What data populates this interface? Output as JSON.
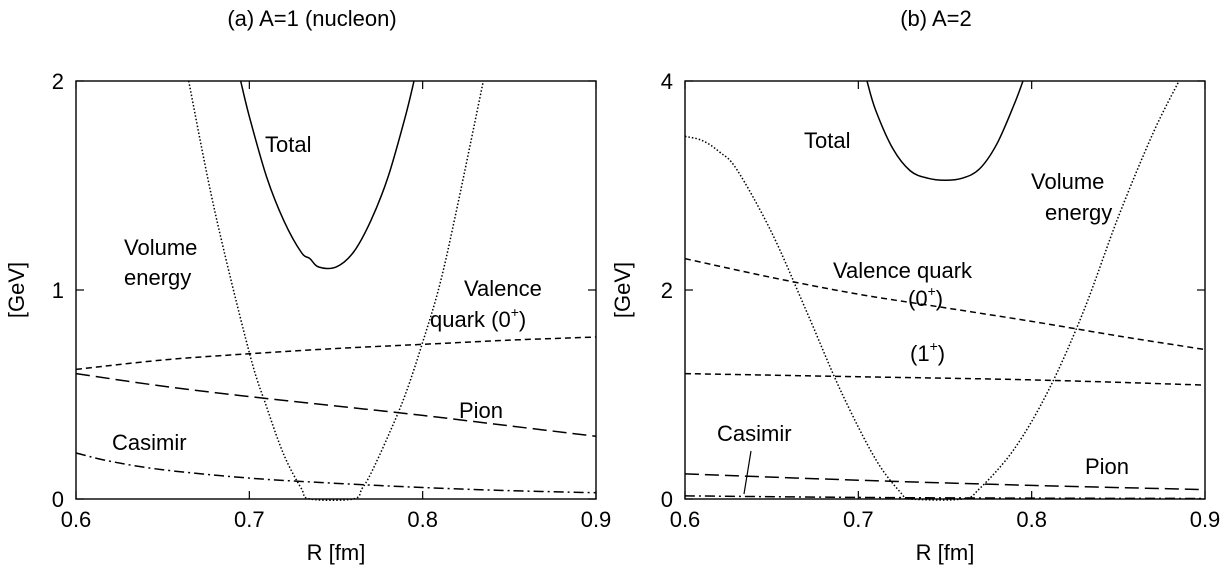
{
  "chart_data": [
    {
      "type": "line",
      "title": "(a) A=1 (nucleon)",
      "xlabel": "R [fm]",
      "ylabel": "[GeV]",
      "xlim": [
        0.6,
        0.9
      ],
      "ylim": [
        0,
        2
      ],
      "xticks": [
        "0.6",
        "0.7",
        "0.8",
        "0.9"
      ],
      "yticks": [
        "0",
        "1",
        "2"
      ],
      "grid": false,
      "series": [
        {
          "key": "total",
          "style": "solid",
          "x": [
            0.695,
            0.7,
            0.71,
            0.72,
            0.73,
            0.735,
            0.74,
            0.75,
            0.76,
            0.77,
            0.78,
            0.79,
            0.795
          ],
          "y": [
            2.0,
            1.83,
            1.54,
            1.33,
            1.18,
            1.15,
            1.11,
            1.11,
            1.18,
            1.33,
            1.54,
            1.83,
            2.0
          ]
        },
        {
          "key": "volume",
          "style": "dotted",
          "x": [
            0.665,
            0.68,
            0.7,
            0.71,
            0.72,
            0.73,
            0.735,
            0.76,
            0.765,
            0.77,
            0.78,
            0.79,
            0.8,
            0.81,
            0.82,
            0.835
          ],
          "y": [
            2.0,
            1.38,
            0.7,
            0.44,
            0.21,
            0.05,
            0.0,
            0.0,
            0.05,
            0.12,
            0.3,
            0.5,
            0.75,
            1.03,
            1.4,
            2.0
          ]
        },
        {
          "key": "valence",
          "style": "shortdash",
          "x": [
            0.6,
            0.65,
            0.7,
            0.75,
            0.8,
            0.85,
            0.9
          ],
          "y": [
            0.62,
            0.665,
            0.695,
            0.72,
            0.74,
            0.76,
            0.775
          ]
        },
        {
          "key": "pion",
          "style": "longdash",
          "x": [
            0.6,
            0.65,
            0.7,
            0.75,
            0.8,
            0.85,
            0.9
          ],
          "y": [
            0.6,
            0.54,
            0.49,
            0.445,
            0.4,
            0.35,
            0.3
          ]
        },
        {
          "key": "casimir",
          "style": "dashdot",
          "x": [
            0.6,
            0.62,
            0.65,
            0.7,
            0.75,
            0.8,
            0.85,
            0.9
          ],
          "y": [
            0.22,
            0.18,
            0.14,
            0.1,
            0.075,
            0.055,
            0.04,
            0.03
          ]
        }
      ],
      "annotations": [
        {
          "text": "Total"
        },
        {
          "text": "Volume"
        },
        {
          "text": "energy"
        },
        {
          "text": "Valence"
        },
        {
          "text": "quark (0",
          "sup": "+",
          "after": ")"
        },
        {
          "text": "Pion"
        },
        {
          "text": "Casimir"
        }
      ]
    },
    {
      "type": "line",
      "title": "(b) A=2",
      "xlabel": "R [fm]",
      "ylabel": "[GeV]",
      "xlim": [
        0.6,
        0.9
      ],
      "ylim": [
        0,
        4
      ],
      "xticks": [
        "0.6",
        "0.7",
        "0.8",
        "0.9"
      ],
      "yticks": [
        "0",
        "2",
        "4"
      ],
      "grid": false,
      "series": [
        {
          "key": "total",
          "style": "solid",
          "x": [
            0.705,
            0.71,
            0.72,
            0.73,
            0.74,
            0.75,
            0.76,
            0.77,
            0.78,
            0.79,
            0.795
          ],
          "y": [
            4.0,
            3.72,
            3.35,
            3.14,
            3.07,
            3.05,
            3.07,
            3.16,
            3.4,
            3.78,
            4.0
          ]
        },
        {
          "key": "volume",
          "style": "dotted",
          "x": [
            0.6,
            0.61,
            0.62,
            0.63,
            0.65,
            0.67,
            0.69,
            0.71,
            0.725,
            0.73,
            0.76,
            0.77,
            0.79,
            0.81,
            0.83,
            0.85,
            0.87,
            0.885
          ],
          "y": [
            3.47,
            3.43,
            3.32,
            3.15,
            2.55,
            1.8,
            1.03,
            0.38,
            0.05,
            0.0,
            0.0,
            0.1,
            0.48,
            1.05,
            1.8,
            2.7,
            3.5,
            4.0
          ]
        },
        {
          "key": "valence0",
          "style": "shortdash",
          "x": [
            0.6,
            0.65,
            0.7,
            0.75,
            0.8,
            0.85,
            0.9
          ],
          "y": [
            2.3,
            2.12,
            1.96,
            1.83,
            1.7,
            1.56,
            1.43
          ]
        },
        {
          "key": "valence1",
          "style": "shortdash",
          "x": [
            0.6,
            0.7,
            0.8,
            0.9
          ],
          "y": [
            1.2,
            1.17,
            1.14,
            1.09
          ]
        },
        {
          "key": "pion",
          "style": "longdash",
          "x": [
            0.6,
            0.7,
            0.8,
            0.9
          ],
          "y": [
            0.24,
            0.18,
            0.13,
            0.09
          ]
        },
        {
          "key": "casimir",
          "style": "dashdot",
          "x": [
            0.6,
            0.7,
            0.8,
            0.9
          ],
          "y": [
            0.03,
            0.015,
            0.008,
            0.005
          ]
        }
      ],
      "annotations": [
        {
          "text": "Total"
        },
        {
          "text": "Volume"
        },
        {
          "text": "energy"
        },
        {
          "text": "Valence quark"
        },
        {
          "text": "(0",
          "sup": "+",
          "after": ")"
        },
        {
          "text": "(1",
          "sup": "+",
          "after": ")"
        },
        {
          "text": "Casimir"
        },
        {
          "text": "Pion"
        }
      ]
    }
  ]
}
